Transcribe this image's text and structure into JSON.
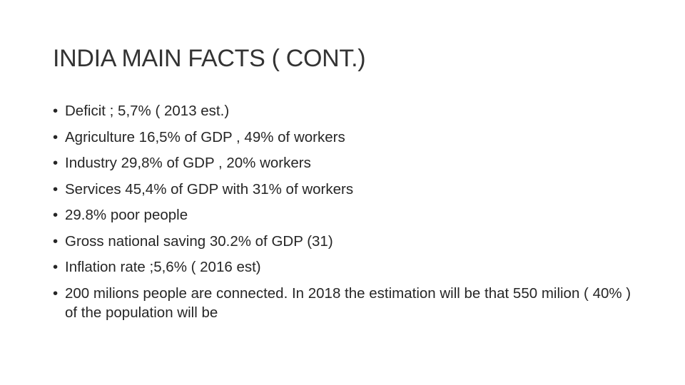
{
  "slide": {
    "title": "INDIA MAIN FACTS ( CONT.)",
    "bullet_glyph": "•",
    "bullets": [
      "Deficit ; 5,7% ( 2013 est.)",
      "Agriculture 16,5% of GDP , 49% of workers",
      "Industry 29,8% of GDP , 20% workers",
      "Services 45,4% of GDP with 31% of workers",
      "29.8% poor people",
      "Gross national saving 30.2% of GDP (31)",
      "Inflation rate ;5,6% ( 2016 est)",
      "200 milions people are connected. In 2018 the estimation will be that 550 milion ( 40% ) of the population will be"
    ]
  }
}
